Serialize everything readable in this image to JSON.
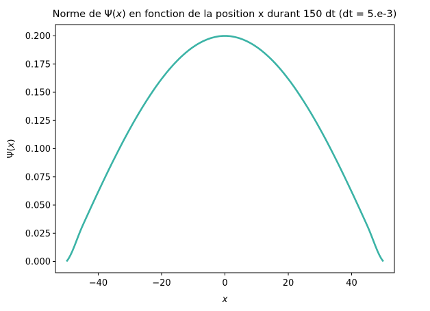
{
  "chart_data": {
    "type": "line",
    "title_prefix": "Norme de Ψ(",
    "title_var": "x",
    "title_suffix": ") en fonction de la position x durant 150 dt (dt = 5.e-3)",
    "xlabel": "x",
    "ylabel_prefix": "Ψ(",
    "ylabel_var": "x",
    "ylabel_suffix": ")",
    "xlim": [
      -53.5,
      53.5
    ],
    "ylim": [
      -0.01,
      0.21
    ],
    "xticks": [
      -40,
      -20,
      0,
      20,
      40
    ],
    "xtick_labels": [
      "−40",
      "−20",
      "0",
      "20",
      "40"
    ],
    "yticks": [
      0.0,
      0.025,
      0.05,
      0.075,
      0.1,
      0.125,
      0.15,
      0.175,
      0.2
    ],
    "ytick_labels": [
      "0.000",
      "0.025",
      "0.050",
      "0.075",
      "0.100",
      "0.125",
      "0.150",
      "0.175",
      "0.200"
    ],
    "grid": false,
    "legend": "none",
    "series": [
      {
        "color": "#3bb3a6",
        "x": [
          -50,
          -45,
          -40,
          -35,
          -30,
          -25,
          -20,
          -15,
          -10,
          -5,
          0,
          5,
          10,
          15,
          20,
          25,
          30,
          35,
          40,
          45,
          50
        ],
        "y": [
          0.0,
          0.0313,
          0.0618,
          0.0908,
          0.1176,
          0.1414,
          0.1618,
          0.1782,
          0.1902,
          0.1975,
          0.2,
          0.1975,
          0.1902,
          0.1782,
          0.1618,
          0.1414,
          0.1176,
          0.0908,
          0.0618,
          0.0313,
          0.0
        ]
      }
    ]
  }
}
